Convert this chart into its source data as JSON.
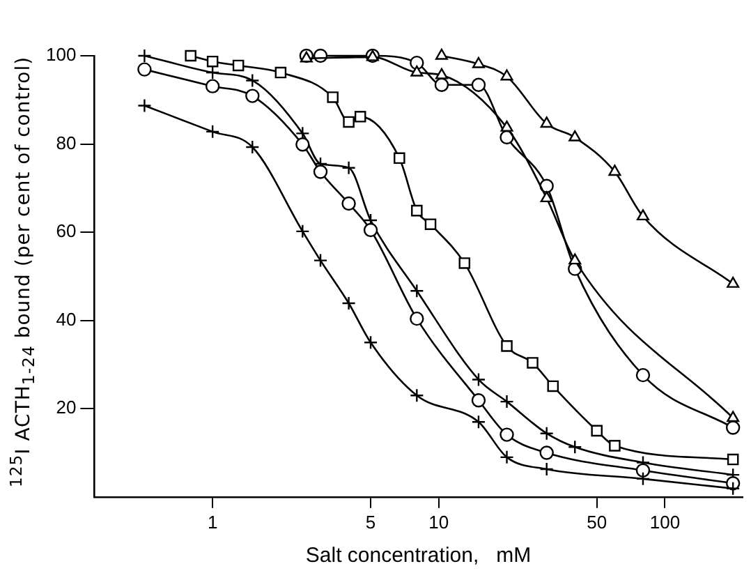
{
  "chart_data": {
    "type": "line",
    "xlabel": "Salt concentration,   mM",
    "ylabel": "$^{125}$I ACTH$_{1-24}$ bound (per cent of control)",
    "log": "x",
    "xlim": [
      0.3,
      220
    ],
    "xticks": [
      1,
      5,
      10,
      50,
      100
    ],
    "ylim": [
      0,
      100
    ],
    "yticks": [
      20,
      40,
      60,
      80,
      100
    ],
    "grid": false,
    "legend": false,
    "line_style": "solid",
    "series": [
      {
        "color": "#000000",
        "marker": "cross",
        "x": [
          0.5,
          1,
          1.5,
          2.5,
          3,
          4,
          5,
          8,
          15,
          20,
          30,
          80,
          200
        ],
        "values": [
          88.7,
          82.8,
          79.3,
          60.2,
          53.6,
          43.9,
          35,
          23,
          17,
          9,
          6.3,
          4.1,
          1.9
        ]
      },
      {
        "color": "#000000",
        "marker": "circle",
        "x": [
          0.5,
          1,
          1.5,
          2.5,
          3,
          4,
          5,
          8,
          15,
          20,
          30,
          80,
          200
        ],
        "values": [
          96.9,
          93.1,
          90.9,
          79.9,
          73.7,
          66.5,
          60.5,
          40.4,
          21.9,
          14.1,
          10,
          6,
          3.1
        ]
      },
      {
        "color": "#000000",
        "marker": "cross",
        "x": [
          0.5,
          1,
          1.5,
          2.5,
          3,
          4,
          5,
          8,
          15,
          20,
          30,
          40,
          80,
          200
        ],
        "values": [
          100,
          96.2,
          94.4,
          82.4,
          75.5,
          74.6,
          62.7,
          46.7,
          26.6,
          21.6,
          14.4,
          11.3,
          7.8,
          5
        ]
      },
      {
        "color": "#000000",
        "marker": "square",
        "x": [
          0.8,
          1,
          1.3,
          2,
          3.4,
          4,
          4.5,
          6.7,
          8,
          9.2,
          13,
          20,
          26,
          32,
          50,
          60,
          200
        ],
        "values": [
          100,
          98.7,
          97.8,
          96.2,
          90.6,
          85,
          86.2,
          76.8,
          64.9,
          61.8,
          53,
          34.2,
          30.4,
          25.1,
          15,
          11.6,
          8.5
        ]
      },
      {
        "color": "#000000",
        "marker": "triangle",
        "x": [
          2.6,
          5.1,
          8,
          10.3,
          20,
          30,
          40,
          200
        ],
        "values": [
          99.4,
          99.7,
          96.2,
          95.6,
          83.7,
          67.7,
          53.6,
          17.9
        ]
      },
      {
        "color": "#000000",
        "marker": "circle",
        "x": [
          2.6,
          3,
          5.1,
          8,
          10.3,
          15,
          20,
          30,
          40,
          80,
          200
        ],
        "values": [
          100,
          100,
          100,
          98.4,
          93.4,
          93.4,
          81.5,
          70.5,
          51.7,
          27.6,
          15.7
        ]
      },
      {
        "color": "#000000",
        "marker": "triangle",
        "x": [
          10.3,
          15,
          20,
          30,
          40,
          60,
          80,
          200
        ],
        "values": [
          100,
          98.1,
          95.3,
          84.6,
          81.5,
          73.7,
          63.6,
          48.3
        ]
      }
    ]
  }
}
